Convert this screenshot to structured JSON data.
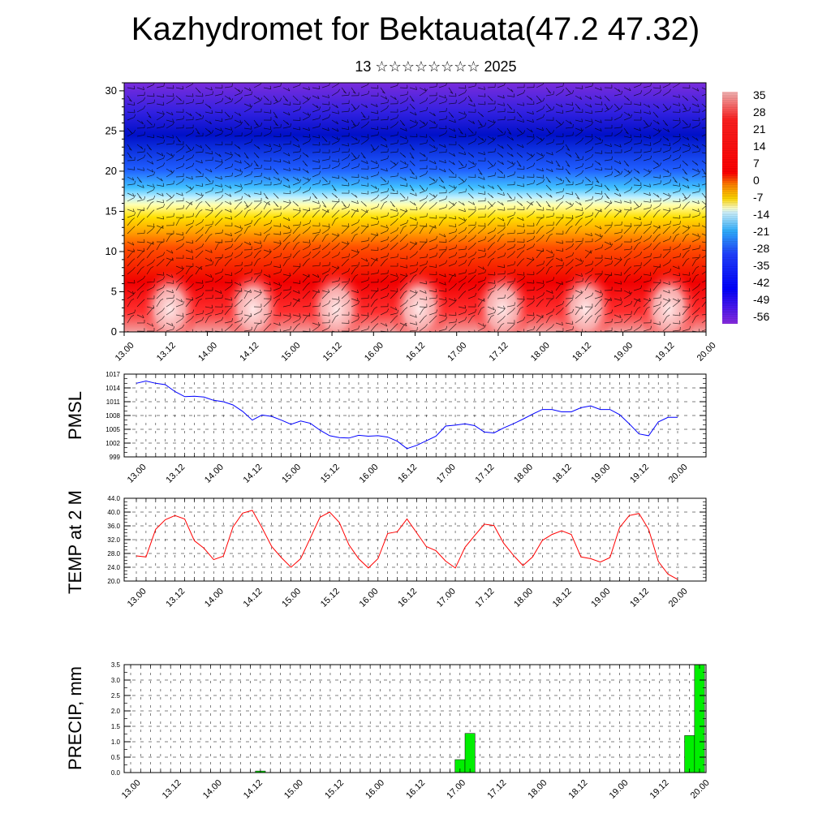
{
  "title": "Kazhydromet for Bektauata(47.2 47.32)",
  "subtitle": "13 ☆☆☆☆☆☆☆☆ 2025",
  "chart_data": [
    {
      "type": "heatmap",
      "name": "cross-section",
      "x_ticks": [
        "13.00",
        "13.12",
        "14.00",
        "14.12",
        "15.00",
        "15.12",
        "16.00",
        "16.12",
        "17.00",
        "17.12",
        "18.00",
        "18.12",
        "19.00",
        "19.12",
        "20.00"
      ],
      "y_ticks": [
        0,
        5,
        10,
        15,
        20,
        25,
        30
      ],
      "ylim": [
        0,
        31
      ],
      "colorbar": {
        "labels": [
          "35",
          "28",
          "21",
          "14",
          "7",
          "0",
          "-7",
          "-14",
          "-21",
          "-28",
          "-35",
          "-42",
          "-49",
          "-56"
        ],
        "colors": [
          "#f4b6b6",
          "#ff0000",
          "#ffd700",
          "#ffffff",
          "#00bfff",
          "#0000ff",
          "#8a2be2"
        ]
      }
    },
    {
      "type": "line",
      "ylabel": "PMSL",
      "color": "#0000ff",
      "ylim": [
        999,
        1017
      ],
      "y_ticks": [
        "999",
        "1002",
        "1005",
        "1008",
        "1011",
        "1014",
        "1017"
      ],
      "x_ticks": [
        "13.00",
        "13.12",
        "14.00",
        "14.12",
        "15.00",
        "15.12",
        "16.00",
        "16.12",
        "17.00",
        "17.12",
        "18.00",
        "18.12",
        "19.00",
        "19.12",
        "20.00"
      ],
      "values": [
        1015,
        1015.5,
        1015,
        1014.7,
        1013.2,
        1012.1,
        1012.2,
        1012,
        1011.3,
        1011,
        1010.3,
        1008.9,
        1007,
        1008.1,
        1007.8,
        1007,
        1006.1,
        1006.8,
        1006.3,
        1004.8,
        1003.6,
        1003.2,
        1003.1,
        1003.7,
        1003.5,
        1003.6,
        1003.3,
        1002.4,
        1000.8,
        1001.5,
        1002.5,
        1003.5,
        1005.7,
        1005.9,
        1006.2,
        1005.8,
        1004.4,
        1004.2,
        1005.3,
        1006.2,
        1007.2,
        1008.3,
        1009.3,
        1009.3,
        1008.8,
        1008.8,
        1009.7,
        1010.1,
        1009.3,
        1009.3,
        1008.2,
        1006.2,
        1004,
        1003.6,
        1006.6,
        1007.6,
        1007.6
      ]
    },
    {
      "type": "line",
      "ylabel": "TEMP at 2 M",
      "color": "#ff0000",
      "ylim": [
        20,
        44
      ],
      "y_ticks": [
        "20.0",
        "24.0",
        "28.0",
        "32.0",
        "36.0",
        "40.0",
        "44.0"
      ],
      "x_ticks": [
        "13.00",
        "13.12",
        "14.00",
        "14.12",
        "15.00",
        "15.12",
        "16.00",
        "16.12",
        "17.00",
        "17.12",
        "18.00",
        "18.12",
        "19.00",
        "19.12",
        "20.00"
      ],
      "values": [
        27.3,
        27,
        35,
        37.8,
        39,
        38,
        31.7,
        29.5,
        26.2,
        27.2,
        35.7,
        39.7,
        40.5,
        35.5,
        30,
        26.8,
        24,
        26.5,
        32.5,
        38.5,
        40,
        37,
        30.5,
        26.5,
        23.8,
        26.5,
        33.8,
        34.3,
        38,
        34,
        30,
        28.8,
        25.8,
        23.8,
        29.8,
        33.2,
        36.5,
        36.1,
        31,
        27.5,
        24.5,
        27,
        31.8,
        33.5,
        34.6,
        33.5,
        27,
        26.5,
        25.5,
        26.8,
        35.5,
        39,
        39.6,
        35,
        25.7,
        22,
        20.5
      ]
    },
    {
      "type": "bar",
      "ylabel": "PRECIP, mm",
      "color": "#00ee00",
      "ylim": [
        0,
        3.5
      ],
      "y_ticks": [
        "0.0",
        "0.5",
        "1.0",
        "1.5",
        "2.0",
        "2.5",
        "3.0",
        "3.5"
      ],
      "x_ticks": [
        "13.00",
        "13.12",
        "14.00",
        "14.12",
        "15.00",
        "15.12",
        "16.00",
        "16.12",
        "17.00",
        "17.12",
        "18.00",
        "18.12",
        "19.00",
        "19.12",
        "20.00"
      ],
      "values": [
        0,
        0,
        0,
        0,
        0,
        0,
        0,
        0,
        0,
        0,
        0,
        0,
        0,
        0.05,
        0,
        0,
        0,
        0,
        0,
        0,
        0,
        0,
        0,
        0,
        0,
        0,
        0,
        0,
        0,
        0,
        0,
        0,
        0,
        0.42,
        1.27,
        0,
        0,
        0,
        0,
        0,
        0,
        0,
        0,
        0,
        0,
        0,
        0,
        0,
        0,
        0,
        0,
        0,
        0,
        0,
        0,
        0,
        1.2,
        3.5
      ]
    }
  ]
}
